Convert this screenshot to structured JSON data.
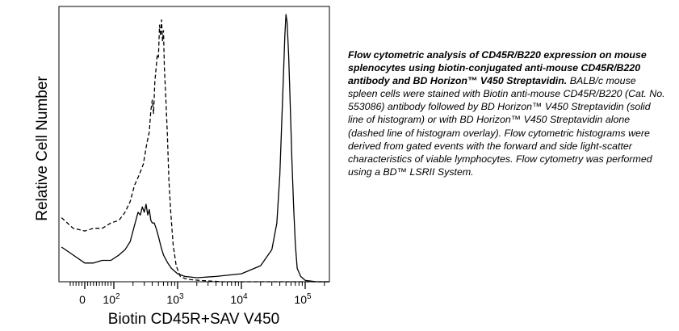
{
  "chart_data": {
    "type": "line",
    "ylabel": "Relative Cell Number",
    "xlabel": "Biotin CD45R+SAV V450",
    "x_scale": "biexponential",
    "x_ticks": [
      {
        "value": 0,
        "label": "0",
        "exp": ""
      },
      {
        "value": 100,
        "label": "10",
        "exp": "2"
      },
      {
        "value": 1000,
        "label": "10",
        "exp": "3"
      },
      {
        "value": 10000,
        "label": "10",
        "exp": "4"
      },
      {
        "value": 100000,
        "label": "10",
        "exp": "5"
      }
    ],
    "ylim": [
      0,
      1
    ],
    "grid": false,
    "series": [
      {
        "style": "solid",
        "x": [
          -80,
          -40,
          0,
          30,
          60,
          90,
          120,
          150,
          180,
          210,
          240,
          260,
          280,
          300,
          320,
          340,
          360,
          380,
          400,
          430,
          460,
          500,
          550,
          600,
          700,
          800,
          1000,
          1300,
          2000,
          4000,
          10000,
          20000,
          30000,
          36000,
          40000,
          43000,
          46000,
          48000,
          50000,
          52000,
          55000,
          58000,
          62000,
          66000,
          70000,
          75000,
          85000,
          100000,
          150000,
          262000
        ],
        "y": [
          0.13,
          0.1,
          0.07,
          0.07,
          0.08,
          0.08,
          0.1,
          0.12,
          0.15,
          0.21,
          0.26,
          0.25,
          0.28,
          0.26,
          0.29,
          0.25,
          0.27,
          0.23,
          0.22,
          0.22,
          0.2,
          0.17,
          0.13,
          0.1,
          0.07,
          0.05,
          0.03,
          0.02,
          0.015,
          0.02,
          0.03,
          0.06,
          0.12,
          0.22,
          0.4,
          0.6,
          0.8,
          0.92,
          1.0,
          0.97,
          0.85,
          0.68,
          0.45,
          0.28,
          0.14,
          0.05,
          0.02,
          0.005,
          0.0,
          0.0
        ]
      },
      {
        "style": "dashed",
        "x": [
          -80,
          -40,
          0,
          30,
          60,
          90,
          120,
          150,
          180,
          210,
          250,
          290,
          330,
          360,
          380,
          400,
          420,
          440,
          460,
          480,
          500,
          520,
          540,
          560,
          580,
          600,
          620,
          650,
          690,
          730,
          780,
          850,
          950,
          1100,
          1300,
          1600,
          2200,
          5000,
          262000
        ],
        "y": [
          0.24,
          0.2,
          0.19,
          0.2,
          0.2,
          0.22,
          0.23,
          0.26,
          0.3,
          0.36,
          0.4,
          0.44,
          0.52,
          0.56,
          0.64,
          0.68,
          0.63,
          0.75,
          0.8,
          0.85,
          0.84,
          0.96,
          0.92,
          0.98,
          0.9,
          0.94,
          0.8,
          0.7,
          0.55,
          0.38,
          0.26,
          0.14,
          0.06,
          0.02,
          0.012,
          0.008,
          0.005,
          0.0,
          0.0
        ]
      }
    ]
  },
  "caption": {
    "title": "Flow cytometric analysis of CD45R/B220 expression on mouse splenocytes using biotin-conjugated anti-mouse CD45R/B220 antibody and BD Horizon™ V450 Streptavidin.",
    "body": " BALB/c mouse spleen cells were stained with Biotin anti-mouse CD45R/B220 (Cat. No. 553086) antibody followed by BD Horizon™ V450 Streptavidin (solid line of histogram) or with BD Horizon™ V450 Streptavidin alone (dashed line of histogram overlay).  Flow cytometric histograms were derived from gated events with the forward and side light-scatter characteristics of viable lymphocytes. Flow cytometry was performed using a BD™ LSRII System."
  }
}
